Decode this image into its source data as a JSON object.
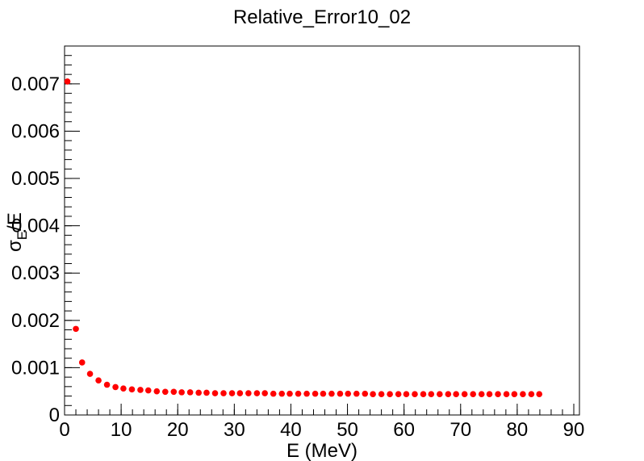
{
  "chart_data": {
    "type": "scatter",
    "title": "Relative_Error10_02",
    "xlabel": "E (MeV)",
    "ylabel": {
      "sigma": "σ",
      "sub": "E",
      "rest": "/E"
    },
    "xlim": [
      0,
      91
    ],
    "ylim": [
      0,
      0.0078
    ],
    "x_ticks": [
      0,
      10,
      20,
      30,
      40,
      50,
      60,
      70,
      80,
      90
    ],
    "x_tick_labels": [
      "0",
      "10",
      "20",
      "30",
      "40",
      "50",
      "60",
      "70",
      "80",
      "90"
    ],
    "y_ticks": [
      0,
      0.001,
      0.002,
      0.003,
      0.004,
      0.005,
      0.006,
      0.007
    ],
    "y_tick_labels": [
      "0",
      "0.001",
      "0.002",
      "0.003",
      "0.004",
      "0.005",
      "0.006",
      "0.007"
    ],
    "grid": false,
    "marker_color": "#ff0000",
    "series": [
      {
        "x": [
          0.5,
          2.0,
          3.1,
          4.5,
          6.0,
          7.5,
          9.0,
          10.4,
          11.9,
          13.4,
          14.8,
          16.3,
          17.8,
          19.3,
          20.7,
          22.2,
          23.7,
          25.1,
          26.6,
          28.1,
          29.6,
          31.0,
          32.5,
          34.0,
          35.4,
          36.9,
          38.4,
          39.8,
          41.3,
          42.8,
          44.3,
          45.7,
          47.2,
          48.7,
          50.1,
          51.6,
          53.1,
          54.5,
          56.0,
          57.5,
          59.0,
          60.4,
          61.9,
          63.4,
          64.8,
          66.3,
          67.8,
          69.2,
          70.7,
          72.2,
          73.7,
          75.1,
          76.6,
          78.1,
          79.5,
          81.0,
          82.5,
          83.9
        ],
        "y": [
          0.00705,
          0.00182,
          0.00111,
          0.00087,
          0.00073,
          0.00064,
          0.00059,
          0.00056,
          0.00054,
          0.00053,
          0.00052,
          0.0005,
          0.00049,
          0.00049,
          0.00048,
          0.00048,
          0.00047,
          0.00047,
          0.00046,
          0.00046,
          0.00046,
          0.00046,
          0.00046,
          0.00046,
          0.00046,
          0.00045,
          0.00045,
          0.00045,
          0.00045,
          0.00045,
          0.00045,
          0.00045,
          0.00045,
          0.00045,
          0.00045,
          0.00045,
          0.00045,
          0.00044,
          0.00044,
          0.00044,
          0.00044,
          0.00044,
          0.00044,
          0.00044,
          0.00044,
          0.00044,
          0.00044,
          0.00044,
          0.00044,
          0.00044,
          0.00044,
          0.00044,
          0.00044,
          0.00044,
          0.00044,
          0.00044,
          0.00044,
          0.00044
        ]
      }
    ]
  }
}
